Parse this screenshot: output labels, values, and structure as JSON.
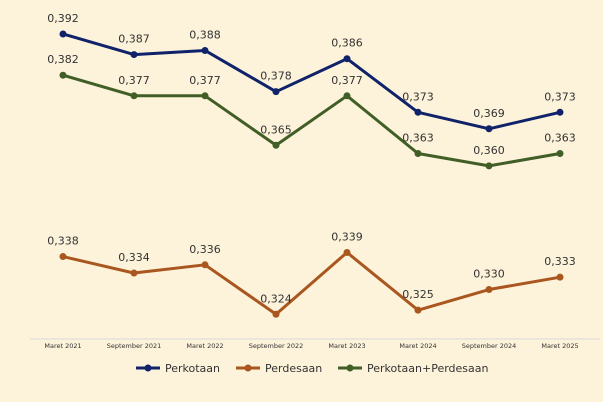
{
  "chart_data": {
    "type": "line",
    "categories": [
      "Maret 2021",
      "September 2021",
      "Maret 2022",
      "September 2022",
      "Maret 2023",
      "Maret 2024",
      "September 2024",
      "Maret 2025"
    ],
    "series": [
      {
        "name": "Perkotaan",
        "color": "#10236a",
        "values": [
          0.392,
          0.387,
          0.388,
          0.378,
          0.386,
          0.373,
          0.369,
          0.373
        ],
        "labels": [
          "0,392",
          "0,387",
          "0,388",
          "0,378",
          "0,386",
          "0,373",
          "0,369",
          "0,373"
        ]
      },
      {
        "name": "Perdesaan",
        "color": "#a9561f",
        "values": [
          0.338,
          0.334,
          0.336,
          0.324,
          0.339,
          0.325,
          0.33,
          0.333
        ],
        "labels": [
          "0,338",
          "0,334",
          "0,336",
          "0,324",
          "0,339",
          "0,325",
          "0,330",
          "0,333"
        ]
      },
      {
        "name": "Perkotaan+Perdesaan",
        "color": "#405e26",
        "values": [
          0.382,
          0.377,
          0.377,
          0.365,
          0.377,
          0.363,
          0.36,
          0.363
        ],
        "labels": [
          "0,382",
          "0,377",
          "0,377",
          "0,365",
          "0,377",
          "0,363",
          "0,360",
          "0,363"
        ]
      }
    ],
    "ylim": [
      0.318,
      0.4
    ],
    "grid": false,
    "legend": "bottom",
    "title": "",
    "xlabel": "",
    "ylabel": ""
  }
}
